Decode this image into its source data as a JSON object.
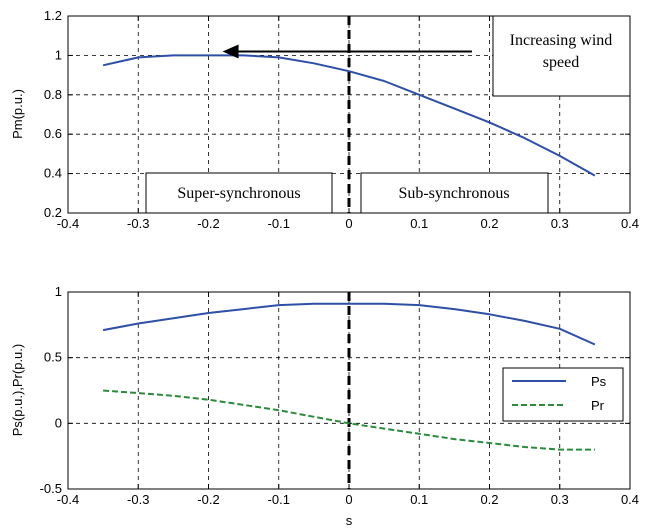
{
  "chart_data": [
    {
      "type": "line",
      "ylabel": "Pm(p.u.)",
      "xlabel": "",
      "xlim": [
        -0.4,
        0.4
      ],
      "ylim": [
        0.2,
        1.2
      ],
      "xticks": [
        "-0.4",
        "-0.3",
        "-0.2",
        "-0.1",
        "0",
        "0.1",
        "0.2",
        "0.3",
        "0.4"
      ],
      "yticks": [
        "0.2",
        "0.4",
        "0.6",
        "0.8",
        "1",
        "1.2"
      ],
      "grid": true,
      "series": [
        {
          "color": "#2e4fa6",
          "style": "solid",
          "x": [
            -0.35,
            -0.3,
            -0.25,
            -0.2,
            -0.15,
            -0.1,
            -0.05,
            0,
            0.05,
            0.1,
            0.15,
            0.2,
            0.25,
            0.3,
            0.35
          ],
          "y": [
            0.95,
            0.99,
            1.0,
            1.0,
            1.0,
            0.99,
            0.96,
            0.92,
            0.87,
            0.8,
            0.73,
            0.66,
            0.58,
            0.49,
            0.39
          ]
        }
      ],
      "vline": {
        "x": 0,
        "style": "bold-dashed",
        "color": "#000000"
      },
      "annotations": [
        {
          "id": "wind",
          "text_lines": [
            "Increasing wind",
            "speed"
          ]
        },
        {
          "id": "super",
          "text": "Super-synchronous"
        },
        {
          "id": "sub",
          "text": "Sub-synchronous"
        }
      ],
      "arrow": {
        "from_x": 0.175,
        "to_x": -0.18,
        "y": 1.02,
        "label": "Increasing wind speed"
      }
    },
    {
      "type": "line",
      "ylabel": "Ps(p.u.),Pr(p.u.)",
      "xlabel": "s",
      "xlim": [
        -0.4,
        0.4
      ],
      "ylim": [
        -0.5,
        1
      ],
      "xticks": [
        "-0.4",
        "-0.3",
        "-0.2",
        "-0.1",
        "0",
        "0.1",
        "0.2",
        "0.3",
        "0.4"
      ],
      "yticks": [
        "-0.5",
        "0",
        "0.5",
        "1"
      ],
      "grid": true,
      "legend_position": "right",
      "series": [
        {
          "name": "Ps",
          "color": "#2e4fa6",
          "style": "solid",
          "x": [
            -0.35,
            -0.3,
            -0.25,
            -0.2,
            -0.15,
            -0.1,
            -0.05,
            0,
            0.05,
            0.1,
            0.15,
            0.2,
            0.25,
            0.3,
            0.35
          ],
          "y": [
            0.71,
            0.76,
            0.8,
            0.84,
            0.87,
            0.9,
            0.91,
            0.91,
            0.91,
            0.9,
            0.87,
            0.83,
            0.78,
            0.72,
            0.6
          ]
        },
        {
          "name": "Pr",
          "color": "#2c8a3c",
          "style": "dashed",
          "x": [
            -0.35,
            -0.3,
            -0.25,
            -0.2,
            -0.15,
            -0.1,
            -0.05,
            0,
            0.05,
            0.1,
            0.15,
            0.2,
            0.25,
            0.3,
            0.35
          ],
          "y": [
            0.25,
            0.23,
            0.21,
            0.18,
            0.14,
            0.1,
            0.05,
            0.0,
            -0.04,
            -0.08,
            -0.12,
            -0.15,
            -0.18,
            -0.2,
            -0.2
          ]
        }
      ],
      "vline": {
        "x": 0,
        "style": "bold-dashed",
        "color": "#000000"
      }
    }
  ]
}
